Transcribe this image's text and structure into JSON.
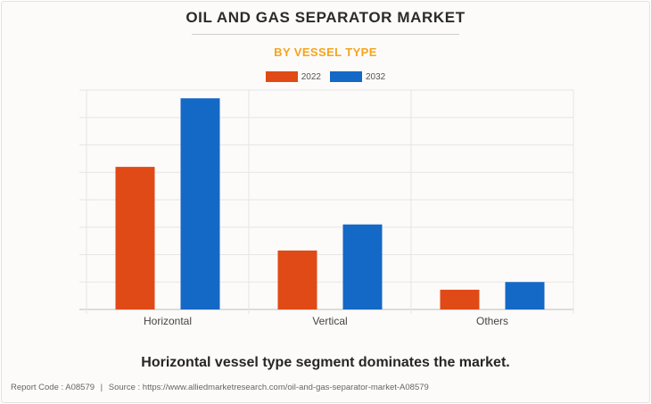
{
  "title": "OIL AND GAS SEPARATOR MARKET",
  "subtitle": "BY VESSEL TYPE",
  "tagline": "Horizontal vessel type segment dominates the market.",
  "footer": {
    "report_code": "Report Code : A08579",
    "separator": "|",
    "source": "Source : https://www.alliedmarketresearch.com/oil-and-gas-separator-market-A08579"
  },
  "colors": {
    "accent": "#f4a51c",
    "series_2022": "#e04a17",
    "series_2032": "#1468c6"
  },
  "chart_data": {
    "type": "bar",
    "categories": [
      "Horizontal",
      "Vertical",
      "Others"
    ],
    "series": [
      {
        "name": "2022",
        "values": [
          5.2,
          2.15,
          0.72
        ]
      },
      {
        "name": "2032",
        "values": [
          7.7,
          3.1,
          1.0
        ]
      }
    ],
    "xlabel": "",
    "ylabel": "",
    "ylim": [
      0,
      8
    ],
    "grid": true,
    "legend": "top-center"
  }
}
